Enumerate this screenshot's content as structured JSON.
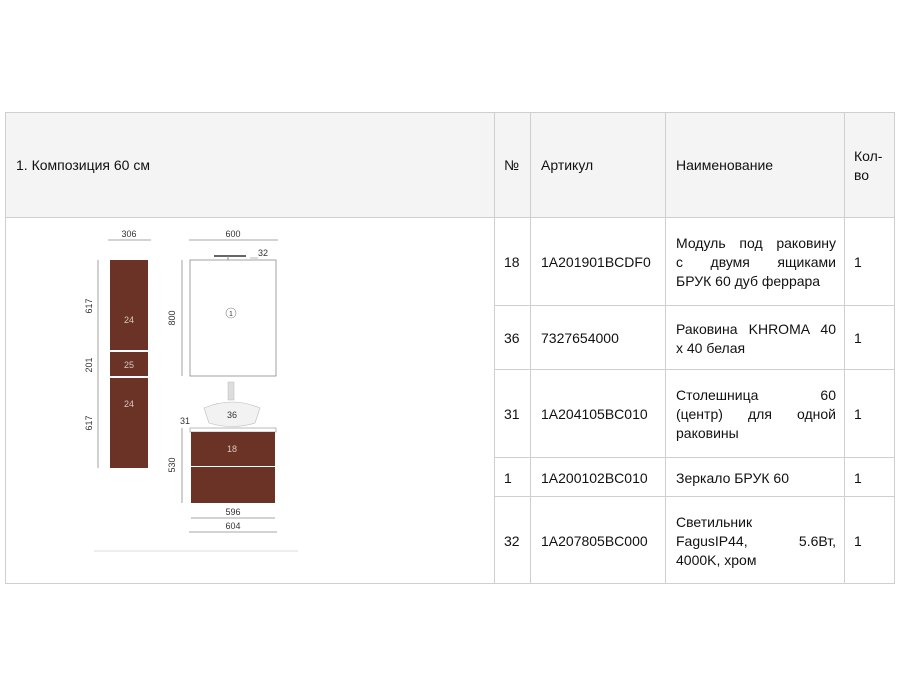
{
  "header": {
    "title": "1. Композиция 60 см",
    "col_num": "№",
    "col_article": "Артикул",
    "col_name": "Наименование",
    "col_qty_line1": "Кол-",
    "col_qty_line2": "во"
  },
  "rows": [
    {
      "num": "18",
      "article": "1A201901BCDF0",
      "name_lines": [
        "Модуль под раковину",
        "с двумя ящиками",
        "БРУК 60 дуб феррара"
      ],
      "qty": "1"
    },
    {
      "num": "36",
      "article": "7327654000",
      "name_lines": [
        "Раковина KHROMA 40",
        "х 40 белая"
      ],
      "qty": "1"
    },
    {
      "num": "31",
      "article": "1A204105BC010",
      "name_lines": [
        "Столешница 60",
        "(центр) для одной",
        "раковины"
      ],
      "qty": "1"
    },
    {
      "num": "1",
      "article": "1A200102BC010",
      "name_lines": [
        "Зеркало БРУК 60"
      ],
      "qty": "1"
    },
    {
      "num": "32",
      "article": "1A207805BC000",
      "name_lines": [
        "Светильник",
        "FagusIP44, 5.6Вт,",
        "4000K, хром"
      ],
      "qty": "1"
    }
  ],
  "drawing": {
    "dims": {
      "column_width": "306",
      "mirror_width": "600",
      "lamp_offset": "32",
      "upper_height": "617",
      "middle_height": "201",
      "lower_height": "617",
      "mirror_height": "800",
      "top_offset": "31",
      "cabinet_height": "530",
      "inner_width": "596",
      "outer_width": "604"
    },
    "labels": {
      "upper_cabinet": "24",
      "middle_cabinet": "25",
      "lower_cabinet": "24",
      "mirror": "1",
      "sink": "36",
      "vanity": "18"
    },
    "colors": {
      "wood": "#6b3326",
      "line": "#8a8a8a"
    }
  }
}
